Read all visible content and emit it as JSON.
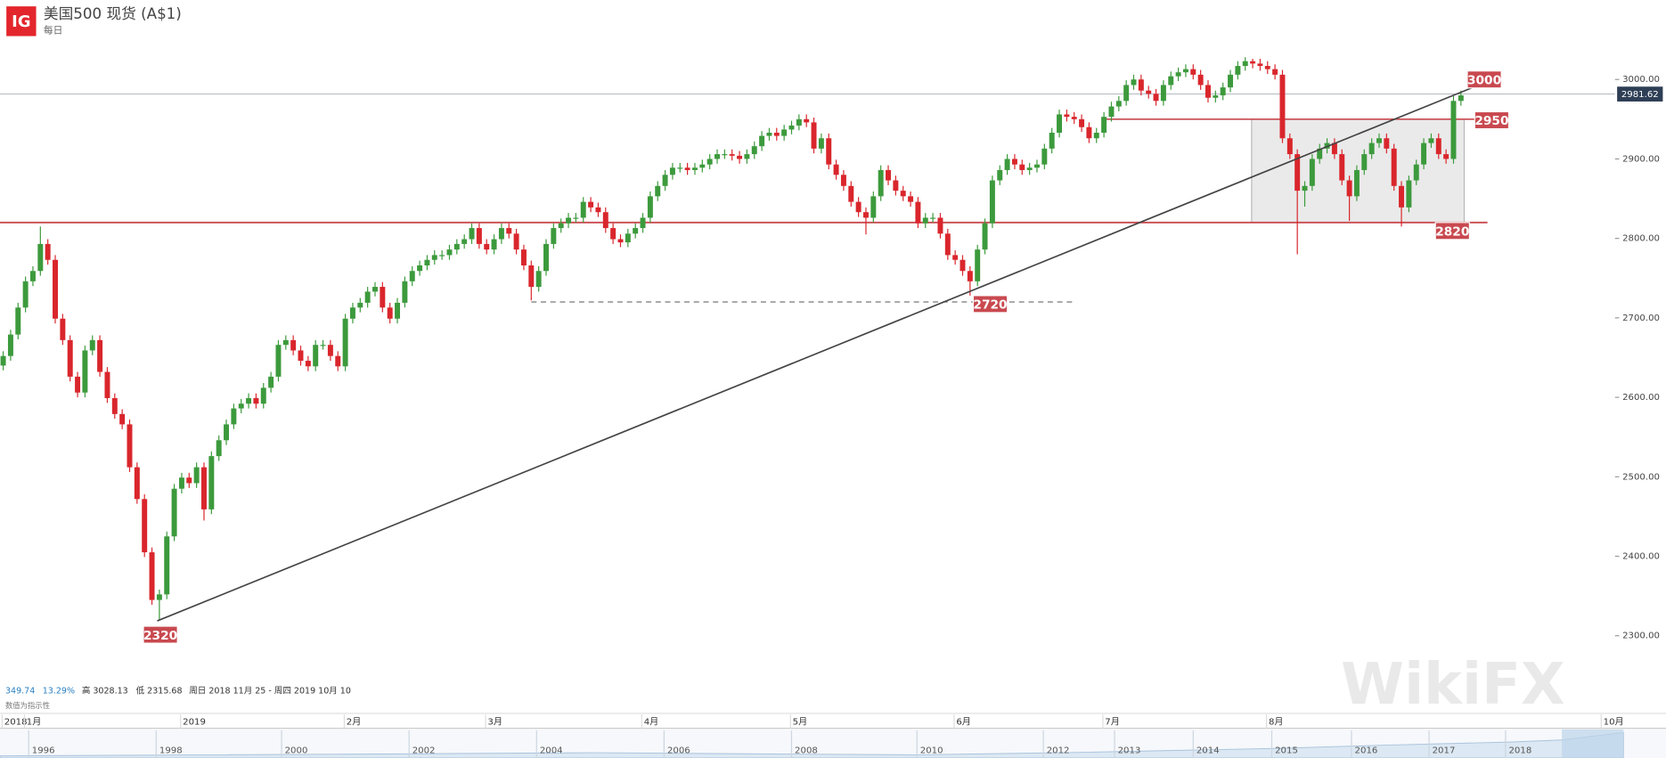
{
  "header": {
    "logo": "IG",
    "title": "美国500 现货 (A$1)",
    "subtitle": "每日"
  },
  "chart_data": {
    "type": "candlestick",
    "up_color": "#3c9a3c",
    "down_color": "#d9262c",
    "ylim": [
      2245,
      3100
    ],
    "yticks": [
      {
        "value": 2300,
        "label": "2300.00"
      },
      {
        "value": 2400,
        "label": "2400.00"
      },
      {
        "value": 2500,
        "label": "2500.00"
      },
      {
        "value": 2600,
        "label": "2600.00"
      },
      {
        "value": 2700,
        "label": "2700.00"
      },
      {
        "value": 2800,
        "label": "2800.00"
      },
      {
        "value": 2900,
        "label": "2900.00"
      },
      {
        "value": 3000,
        "label": "3000.00"
      }
    ],
    "categories": [
      null,
      "2018",
      null,
      null,
      "1月",
      null,
      null,
      null,
      null,
      null,
      null,
      null,
      null,
      null,
      null,
      null,
      null,
      null,
      null,
      null,
      null,
      null,
      null,
      null,
      null,
      "2019",
      null,
      null,
      null,
      null,
      null,
      null,
      null,
      null,
      null,
      null,
      null,
      null,
      null,
      null,
      null,
      null,
      null,
      null,
      null,
      null,
      null,
      "2月",
      null,
      null,
      null,
      null,
      null,
      null,
      null,
      null,
      null,
      null,
      null,
      null,
      null,
      null,
      null,
      null,
      null,
      null,
      "3月",
      null,
      null,
      null,
      null,
      null,
      null,
      null,
      null,
      null,
      null,
      null,
      null,
      null,
      null,
      null,
      null,
      null,
      null,
      null,
      null,
      "4月",
      null,
      null,
      null,
      null,
      null,
      null,
      null,
      null,
      null,
      null,
      null,
      null,
      null,
      null,
      null,
      null,
      null,
      null,
      null,
      "5月",
      null,
      null,
      null,
      null,
      null,
      null,
      null,
      null,
      null,
      null,
      null,
      null,
      null,
      null,
      null,
      null,
      null,
      null,
      null,
      null,
      null,
      "6月",
      null,
      null,
      null,
      null,
      null,
      null,
      null,
      null,
      null,
      null,
      null,
      null,
      null,
      null,
      null,
      null,
      null,
      null,
      null,
      "7月",
      null,
      null,
      null,
      null,
      null,
      null,
      null,
      null,
      null,
      null,
      null,
      null,
      null,
      null,
      null,
      null,
      null,
      null,
      null,
      null,
      null,
      "8月",
      null,
      null,
      null,
      null,
      null,
      null,
      null,
      null,
      null,
      null,
      null,
      null,
      null,
      null,
      null,
      null,
      null,
      null,
      null,
      null,
      null,
      null,
      null,
      null,
      null,
      null,
      null,
      null,
      null,
      null,
      null,
      null,
      null,
      null,
      null,
      null,
      null,
      null,
      null,
      null,
      null,
      null,
      null,
      null,
      "10月"
    ],
    "open": [
      2640,
      2652,
      2679,
      2713,
      2746,
      2759,
      2793,
      2773,
      2699,
      2672,
      2626,
      2606,
      2659,
      2672,
      2632,
      2599,
      2579,
      2566,
      2512,
      2472,
      2405,
      2345,
      2352,
      2425,
      2485,
      2499,
      2492,
      2512,
      2459,
      2526,
      2546,
      2566,
      2586,
      2592,
      2599,
      2592,
      2612,
      2626,
      2666,
      2672,
      2659,
      2646,
      2639,
      2666,
      2666,
      2652,
      2639,
      2699,
      2713,
      2719,
      2733,
      2739,
      2713,
      2699,
      2719,
      2746,
      2759,
      2766,
      2773,
      2779,
      2779,
      2786,
      2793,
      2799,
      2813,
      2793,
      2786,
      2799,
      2813,
      2806,
      2786,
      2766,
      2739,
      2759,
      2793,
      2813,
      2819,
      2826,
      2826,
      2846,
      2839,
      2833,
      2813,
      2799,
      2795,
      2806,
      2813,
      2826,
      2853,
      2866,
      2880,
      2889,
      2889,
      2886,
      2889,
      2893,
      2900,
      2906,
      2906,
      2904,
      2900,
      2906,
      2916,
      2929,
      2933,
      2929,
      2937,
      2942,
      2950,
      2946,
      2913,
      2926,
      2893,
      2880,
      2866,
      2846,
      2833,
      2826,
      2853,
      2886,
      2873,
      2860,
      2853,
      2846,
      2819,
      2826,
      2826,
      2806,
      2779,
      2773,
      2759,
      2746,
      2786,
      2819,
      2873,
      2886,
      2900,
      2893,
      2886,
      2889,
      2893,
      2913,
      2933,
      2956,
      2953,
      2950,
      2940,
      2926,
      2933,
      2953,
      2966,
      2973,
      2993,
      3000,
      2986,
      2982,
      2973,
      2993,
      3004,
      3009,
      3013,
      3006,
      2993,
      2977,
      2980,
      2990,
      3006,
      3017,
      3023,
      3020,
      3017,
      3013,
      3006,
      2926,
      2906,
      2860,
      2866,
      2900,
      2913,
      2920,
      2906,
      2873,
      2853,
      2886,
      2906,
      2920,
      2926,
      2913,
      2866,
      2839,
      2873,
      2893,
      2920,
      2926,
      2906,
      2900,
      2973,
      null,
      null,
      null,
      null,
      null,
      null,
      null,
      null,
      null,
      null,
      null,
      null,
      null,
      null,
      null,
      null,
      null,
      null,
      null,
      null
    ],
    "high": [
      2658,
      2685,
      2719,
      2752,
      2765,
      2815,
      2799,
      2779,
      2705,
      2678,
      2632,
      2665,
      2678,
      2678,
      2638,
      2605,
      2585,
      2572,
      2518,
      2478,
      2411,
      2358,
      2431,
      2491,
      2505,
      2505,
      2518,
      2518,
      2532,
      2552,
      2572,
      2592,
      2598,
      2605,
      2605,
      2618,
      2632,
      2672,
      2678,
      2678,
      2665,
      2652,
      2672,
      2672,
      2672,
      2658,
      2705,
      2719,
      2725,
      2739,
      2745,
      2745,
      2719,
      2725,
      2752,
      2765,
      2772,
      2779,
      2785,
      2785,
      2792,
      2799,
      2805,
      2819,
      2819,
      2799,
      2805,
      2819,
      2819,
      2812,
      2792,
      2772,
      2765,
      2799,
      2819,
      2825,
      2832,
      2832,
      2852,
      2852,
      2845,
      2839,
      2819,
      2805,
      2812,
      2819,
      2832,
      2859,
      2872,
      2886,
      2895,
      2895,
      2895,
      2895,
      2899,
      2906,
      2912,
      2912,
      2912,
      2910,
      2912,
      2922,
      2935,
      2939,
      2939,
      2943,
      2948,
      2956,
      2956,
      2952,
      2932,
      2932,
      2899,
      2886,
      2872,
      2852,
      2839,
      2859,
      2892,
      2892,
      2879,
      2866,
      2859,
      2852,
      2832,
      2832,
      2832,
      2812,
      2785,
      2779,
      2765,
      2792,
      2825,
      2879,
      2892,
      2906,
      2906,
      2899,
      2895,
      2899,
      2919,
      2939,
      2962,
      2962,
      2959,
      2956,
      2946,
      2939,
      2959,
      2972,
      2979,
      2999,
      3006,
      3006,
      2992,
      2988,
      2999,
      3010,
      3015,
      3019,
      3019,
      3012,
      2999,
      2986,
      2996,
      3012,
      3023,
      3028,
      3026,
      3026,
      3023,
      3019,
      3012,
      2932,
      2912,
      2872,
      2906,
      2919,
      2926,
      2926,
      2912,
      2879,
      2892,
      2912,
      2926,
      2932,
      2932,
      2919,
      2872,
      2879,
      2899,
      2926,
      2932,
      2932,
      2912,
      2979,
      2986,
      null,
      null,
      null,
      null,
      null,
      null,
      null,
      null,
      null,
      null,
      null,
      null,
      null,
      null,
      null,
      null,
      null,
      null,
      null,
      null
    ],
    "low": [
      2634,
      2646,
      2673,
      2707,
      2740,
      2753,
      2767,
      2693,
      2666,
      2620,
      2600,
      2600,
      2653,
      2626,
      2593,
      2573,
      2560,
      2506,
      2466,
      2399,
      2339,
      2320,
      2346,
      2419,
      2479,
      2486,
      2486,
      2445,
      2453,
      2520,
      2540,
      2560,
      2580,
      2586,
      2586,
      2586,
      2606,
      2620,
      2660,
      2653,
      2640,
      2633,
      2633,
      2660,
      2646,
      2633,
      2633,
      2693,
      2707,
      2713,
      2727,
      2707,
      2693,
      2693,
      2713,
      2740,
      2753,
      2760,
      2767,
      2773,
      2773,
      2780,
      2787,
      2793,
      2787,
      2780,
      2780,
      2793,
      2800,
      2780,
      2760,
      2722,
      2733,
      2753,
      2787,
      2807,
      2813,
      2820,
      2820,
      2833,
      2827,
      2807,
      2793,
      2789,
      2789,
      2800,
      2807,
      2820,
      2847,
      2860,
      2874,
      2883,
      2880,
      2880,
      2883,
      2887,
      2894,
      2900,
      2898,
      2894,
      2894,
      2900,
      2910,
      2923,
      2923,
      2923,
      2931,
      2936,
      2940,
      2907,
      2907,
      2887,
      2874,
      2860,
      2840,
      2827,
      2805,
      2820,
      2847,
      2867,
      2854,
      2847,
      2840,
      2813,
      2813,
      2820,
      2800,
      2773,
      2767,
      2753,
      2728,
      2740,
      2780,
      2813,
      2867,
      2880,
      2887,
      2880,
      2880,
      2883,
      2887,
      2907,
      2927,
      2947,
      2944,
      2934,
      2920,
      2920,
      2927,
      2947,
      2960,
      2967,
      2987,
      2980,
      2976,
      2967,
      2967,
      2987,
      2998,
      3003,
      3000,
      2987,
      2971,
      2971,
      2974,
      2984,
      3000,
      3011,
      3014,
      3011,
      3007,
      3000,
      2920,
      2900,
      2780,
      2840,
      2860,
      2894,
      2907,
      2900,
      2867,
      2822,
      2847,
      2880,
      2900,
      2914,
      2907,
      2860,
      2815,
      2833,
      2867,
      2887,
      2914,
      2900,
      2894,
      2894,
      2967,
      null,
      null,
      null,
      null,
      null,
      null,
      null,
      null,
      null,
      null,
      null,
      null,
      null,
      null,
      null,
      null,
      null,
      null,
      null,
      null
    ],
    "close": [
      2652,
      2679,
      2713,
      2746,
      2759,
      2793,
      2773,
      2699,
      2672,
      2626,
      2606,
      2659,
      2672,
      2632,
      2599,
      2579,
      2566,
      2512,
      2472,
      2405,
      2345,
      2352,
      2425,
      2485,
      2499,
      2492,
      2512,
      2459,
      2526,
      2546,
      2566,
      2586,
      2592,
      2599,
      2592,
      2612,
      2626,
      2666,
      2672,
      2659,
      2646,
      2639,
      2666,
      2666,
      2652,
      2639,
      2699,
      2713,
      2719,
      2733,
      2739,
      2713,
      2699,
      2719,
      2746,
      2759,
      2766,
      2773,
      2779,
      2779,
      2786,
      2793,
      2799,
      2813,
      2793,
      2786,
      2799,
      2813,
      2806,
      2786,
      2766,
      2739,
      2759,
      2793,
      2813,
      2819,
      2826,
      2826,
      2846,
      2839,
      2833,
      2813,
      2799,
      2795,
      2806,
      2813,
      2826,
      2853,
      2866,
      2880,
      2889,
      2889,
      2886,
      2889,
      2893,
      2900,
      2906,
      2906,
      2904,
      2900,
      2906,
      2916,
      2929,
      2933,
      2929,
      2937,
      2942,
      2950,
      2946,
      2913,
      2926,
      2893,
      2880,
      2866,
      2846,
      2833,
      2826,
      2853,
      2886,
      2873,
      2860,
      2853,
      2846,
      2819,
      2826,
      2826,
      2806,
      2779,
      2773,
      2759,
      2746,
      2786,
      2819,
      2873,
      2886,
      2900,
      2893,
      2886,
      2889,
      2893,
      2913,
      2933,
      2956,
      2953,
      2950,
      2940,
      2926,
      2933,
      2953,
      2966,
      2973,
      2993,
      3000,
      2986,
      2982,
      2973,
      2993,
      3004,
      3009,
      3013,
      3006,
      2993,
      2977,
      2980,
      2990,
      3006,
      3017,
      3023,
      3020,
      3017,
      3013,
      3006,
      2926,
      2906,
      2860,
      2866,
      2900,
      2913,
      2920,
      2906,
      2873,
      2853,
      2886,
      2906,
      2920,
      2926,
      2913,
      2866,
      2839,
      2873,
      2893,
      2920,
      2926,
      2906,
      2900,
      2973,
      2980,
      null,
      null,
      null,
      null,
      null,
      null,
      null,
      null,
      null,
      null,
      null,
      null,
      null,
      null,
      null,
      null,
      null,
      null,
      null,
      null
    ],
    "annotations": [
      3000,
      2950,
      2820,
      2720,
      2320
    ],
    "annotation_color": "#c8494f",
    "last_price": 2981.62
  },
  "stats": [
    "349.74",
    "13.29%",
    "高 3028.13",
    "低 2315.68",
    "周日 2018 11月 25 - 周四 2019 10月 10"
  ],
  "note": "数值为指示性",
  "navigator": {
    "labels": [
      "1996",
      "1998",
      "2000",
      "2002",
      "2004",
      "2006",
      "2008",
      "2010",
      "2012",
      "2013",
      "2014",
      "2015",
      "2016",
      "2017",
      "2018"
    ]
  },
  "watermark": "WikiFX"
}
